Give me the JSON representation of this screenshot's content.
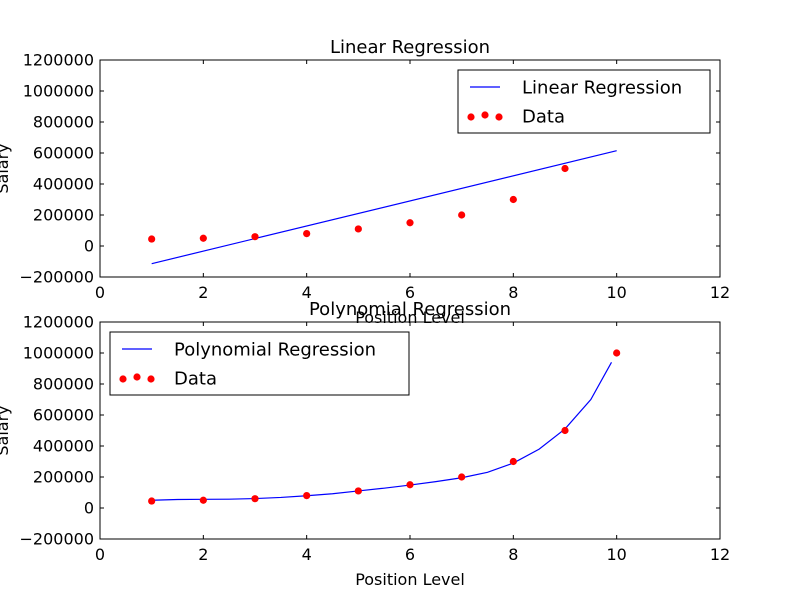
{
  "chart_data": [
    {
      "type": "line",
      "title": "Linear Regression",
      "xlabel": "Position Level",
      "ylabel": "Salary",
      "xlim": [
        0,
        12
      ],
      "ylim": [
        -200000,
        1200000
      ],
      "xticks": [
        0,
        2,
        4,
        6,
        8,
        10,
        12
      ],
      "xtick_labels": [
        "0",
        "2",
        "4",
        "6",
        "8",
        "10",
        "12"
      ],
      "yticks": [
        -200000,
        0,
        200000,
        400000,
        600000,
        800000,
        1000000,
        1200000
      ],
      "ytick_labels": [
        "−200000",
        "0",
        "200000",
        "400000",
        "600000",
        "800000",
        "1000000",
        "1200000"
      ],
      "grid": false,
      "legend_position": "upper-right",
      "series": [
        {
          "name": "Linear Regression",
          "kind": "line",
          "color": "#0000ff",
          "points": [
            [
              1,
              -114000
            ],
            [
              10,
              615000
            ]
          ]
        },
        {
          "name": "Data",
          "kind": "scatter",
          "color": "#ff0000",
          "points": [
            [
              1,
              45000
            ],
            [
              2,
              50000
            ],
            [
              3,
              60000
            ],
            [
              4,
              80000
            ],
            [
              5,
              110000
            ],
            [
              6,
              150000
            ],
            [
              7,
              200000
            ],
            [
              8,
              300000
            ],
            [
              9,
              500000
            ]
          ]
        }
      ]
    },
    {
      "type": "line",
      "title": "Polynomial Regression",
      "xlabel": "Position Level",
      "ylabel": "Salary",
      "xlim": [
        0,
        12
      ],
      "ylim": [
        -200000,
        1200000
      ],
      "xticks": [
        0,
        2,
        4,
        6,
        8,
        10,
        12
      ],
      "xtick_labels": [
        "0",
        "2",
        "4",
        "6",
        "8",
        "10",
        "12"
      ],
      "yticks": [
        -200000,
        0,
        200000,
        400000,
        600000,
        800000,
        1000000,
        1200000
      ],
      "ytick_labels": [
        "−200000",
        "0",
        "200000",
        "400000",
        "600000",
        "800000",
        "1000000",
        "1200000"
      ],
      "grid": false,
      "legend_position": "upper-left",
      "series": [
        {
          "name": "Polynomial Regression",
          "kind": "line",
          "color": "#0000ff",
          "points": [
            [
              1,
              50000
            ],
            [
              1.5,
              55000
            ],
            [
              2,
              56000
            ],
            [
              2.5,
              57000
            ],
            [
              3,
              61000
            ],
            [
              3.5,
              68000
            ],
            [
              4,
              79000
            ],
            [
              4.5,
              92000
            ],
            [
              5,
              110000
            ],
            [
              5.5,
              128000
            ],
            [
              6,
              148000
            ],
            [
              6.5,
              170000
            ],
            [
              7,
              195000
            ],
            [
              7.5,
              230000
            ],
            [
              8,
              290000
            ],
            [
              8.5,
              380000
            ],
            [
              9,
              510000
            ],
            [
              9.5,
              700000
            ],
            [
              9.9,
              940000
            ]
          ]
        },
        {
          "name": "Data",
          "kind": "scatter",
          "color": "#ff0000",
          "points": [
            [
              1,
              45000
            ],
            [
              2,
              50000
            ],
            [
              3,
              60000
            ],
            [
              4,
              80000
            ],
            [
              5,
              110000
            ],
            [
              6,
              150000
            ],
            [
              7,
              200000
            ],
            [
              8,
              300000
            ],
            [
              9,
              500000
            ],
            [
              10,
              1000000
            ]
          ]
        }
      ]
    }
  ]
}
